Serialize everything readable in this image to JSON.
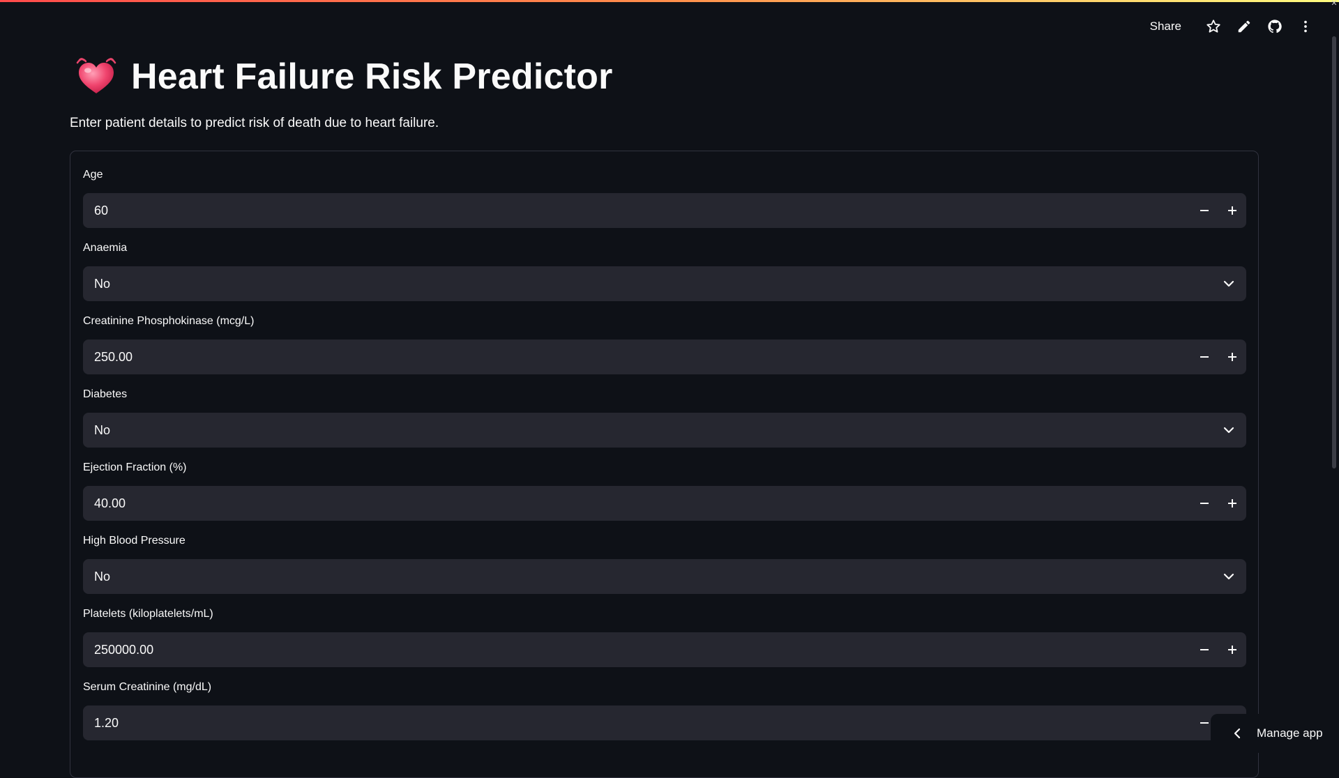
{
  "toolbar": {
    "share_label": "Share",
    "icons": [
      "star-icon",
      "pencil-icon",
      "github-icon",
      "more-vertical-icon"
    ]
  },
  "header": {
    "emoji": "heart-beating-icon",
    "title": "Heart Failure Risk Predictor",
    "subtitle": "Enter patient details to predict risk of death due to heart failure."
  },
  "form": {
    "fields": [
      {
        "label": "Age",
        "type": "number",
        "value": "60"
      },
      {
        "label": "Anaemia",
        "type": "select",
        "value": "No"
      },
      {
        "label": "Creatinine Phosphokinase (mcg/L)",
        "type": "number",
        "value": "250.00"
      },
      {
        "label": "Diabetes",
        "type": "select",
        "value": "No"
      },
      {
        "label": "Ejection Fraction (%)",
        "type": "number",
        "value": "40.00"
      },
      {
        "label": "High Blood Pressure",
        "type": "select",
        "value": "No"
      },
      {
        "label": "Platelets (kiloplatelets/mL)",
        "type": "number",
        "value": "250000.00"
      },
      {
        "label": "Serum Creatinine (mg/dL)",
        "type": "number",
        "value": "1.20"
      }
    ]
  },
  "manage_app": {
    "label": "Manage app"
  },
  "colors": {
    "background": "#0e1117",
    "input_bg": "#262730",
    "border": "#31333f",
    "text": "#fafafa",
    "accent_gradient_start": "#ff4b4b",
    "accent_gradient_end": "#fffd80"
  }
}
